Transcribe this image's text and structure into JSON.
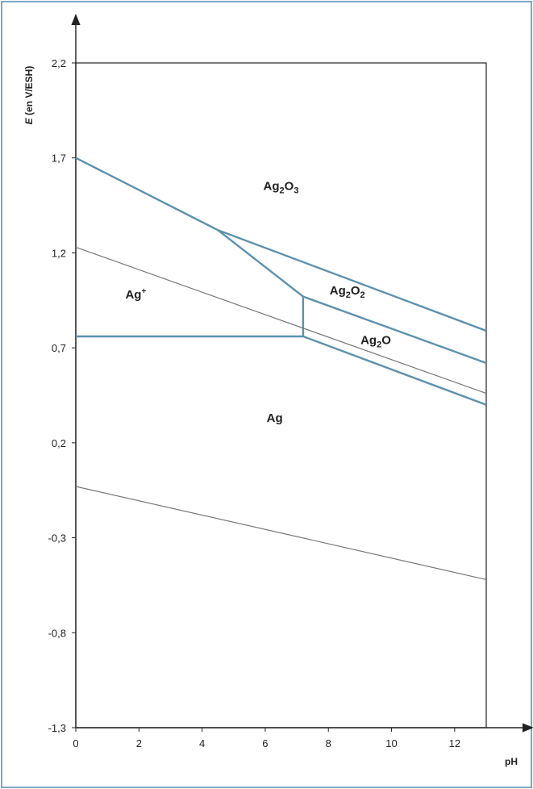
{
  "chart_data": {
    "type": "line",
    "title": "",
    "xlabel": "pH",
    "ylabel_italic": "E",
    "ylabel_rest": " (en V/ESH)",
    "xlim": [
      0,
      13
    ],
    "ylim": [
      -1.3,
      2.2
    ],
    "x_ticks": [
      {
        "value": 0,
        "label": "0"
      },
      {
        "value": 2,
        "label": "2"
      },
      {
        "value": 4,
        "label": "4"
      },
      {
        "value": 6,
        "label": "6"
      },
      {
        "value": 8,
        "label": "8"
      },
      {
        "value": 10,
        "label": "10"
      },
      {
        "value": 12,
        "label": "12"
      }
    ],
    "y_ticks": [
      {
        "value": 2.2,
        "label": "2,2"
      },
      {
        "value": 1.7,
        "label": "1,7"
      },
      {
        "value": 1.2,
        "label": "1,2"
      },
      {
        "value": 0.7,
        "label": "0,7"
      },
      {
        "value": 0.2,
        "label": "0,2"
      },
      {
        "value": -0.3,
        "label": "-0,3"
      },
      {
        "value": -0.8,
        "label": "-0,8"
      },
      {
        "value": -1.3,
        "label": "-1,3"
      }
    ],
    "colors": {
      "boundary": "#5b91ad",
      "water_line": "#777777",
      "axis": "#222222",
      "frame": "#222222"
    },
    "boundaries": [
      {
        "kind": "boundary",
        "points": [
          [
            0,
            1.7
          ],
          [
            4.5,
            1.32
          ],
          [
            13,
            0.79
          ]
        ]
      },
      {
        "kind": "boundary",
        "points": [
          [
            4.5,
            1.32
          ],
          [
            7.2,
            0.97
          ],
          [
            13,
            0.62
          ]
        ]
      },
      {
        "kind": "boundary",
        "points": [
          [
            7.2,
            0.97
          ],
          [
            7.2,
            0.76
          ]
        ]
      },
      {
        "kind": "boundary",
        "points": [
          [
            0,
            0.76
          ],
          [
            7.2,
            0.76
          ],
          [
            13,
            0.4
          ]
        ]
      },
      {
        "kind": "water_line",
        "points": [
          [
            0,
            1.23
          ],
          [
            13,
            0.46
          ]
        ]
      },
      {
        "kind": "water_line",
        "points": [
          [
            0,
            -0.03
          ],
          [
            13,
            -0.52
          ]
        ]
      }
    ],
    "regions": [
      {
        "id": "ag2o3",
        "x": 6.5,
        "y": 1.53,
        "base": "Ag",
        "sub1": "2",
        "mid": "O",
        "sub2": "3",
        "sup": ""
      },
      {
        "id": "ag-plus",
        "x": 1.9,
        "y": 0.96,
        "base": "Ag",
        "sub1": "",
        "mid": "",
        "sub2": "",
        "sup": "+"
      },
      {
        "id": "ag2o2",
        "x": 8.6,
        "y": 0.98,
        "base": "Ag",
        "sub1": "2",
        "mid": "O",
        "sub2": "2",
        "sup": ""
      },
      {
        "id": "ag2o",
        "x": 9.5,
        "y": 0.72,
        "base": "Ag",
        "sub1": "2",
        "mid": "O",
        "sub2": "",
        "sup": ""
      },
      {
        "id": "ag",
        "x": 6.3,
        "y": 0.31,
        "base": "Ag",
        "sub1": "",
        "mid": "",
        "sub2": "",
        "sup": ""
      }
    ]
  }
}
